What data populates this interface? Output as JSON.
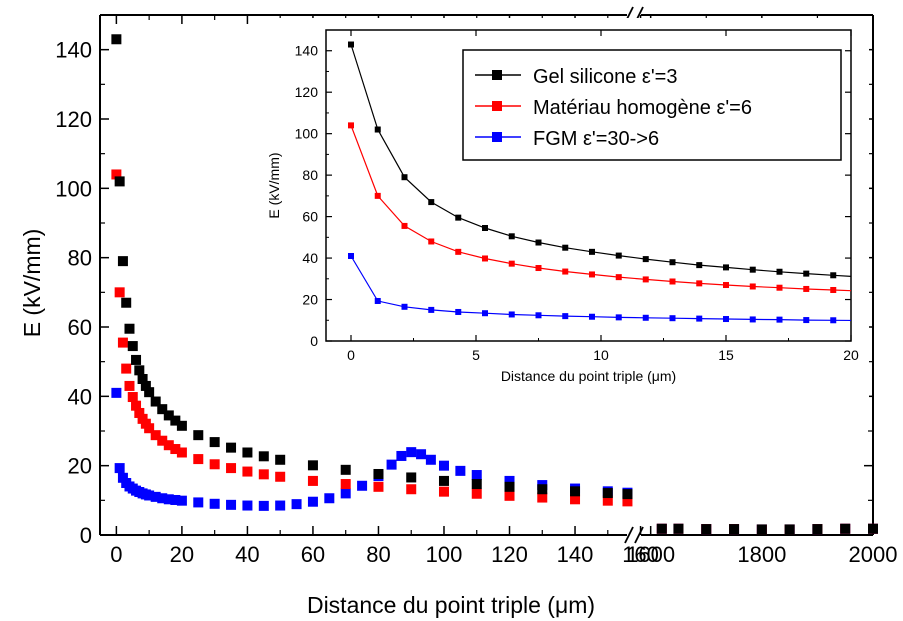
{
  "chart_data": [
    {
      "type": "scatter",
      "xlabel": "Distance du point triple (μm)",
      "ylabel": "E (kV/mm)",
      "ylim": [
        0,
        150
      ],
      "y_ticks": [
        "0",
        "20",
        "40",
        "60",
        "80",
        "100",
        "120",
        "140"
      ],
      "x_broken_axis": true,
      "x_segments": [
        {
          "range": [
            -5,
            158
          ],
          "ticks": [
            "0",
            "20",
            "40",
            "60",
            "80",
            "100",
            "120",
            "140",
            "160"
          ]
        },
        {
          "range": [
            1600,
            2000
          ],
          "ticks": [
            "1600",
            "1800",
            "2000"
          ]
        }
      ],
      "series": [
        {
          "name": "Gel silicone ε'=3",
          "color": "#000000",
          "points": [
            [
              0,
              143
            ],
            [
              1,
              102
            ],
            [
              2,
              79
            ],
            [
              3,
              67
            ],
            [
              4,
              59.5
            ],
            [
              5,
              54.5
            ],
            [
              6,
              50.5
            ],
            [
              7,
              47.5
            ],
            [
              8,
              45
            ],
            [
              9,
              43
            ],
            [
              10,
              41.2
            ],
            [
              12,
              38.5
            ],
            [
              14,
              36.3
            ],
            [
              16,
              34.5
            ],
            [
              18,
              33
            ],
            [
              20,
              31.5
            ],
            [
              25,
              28.8
            ],
            [
              30,
              26.8
            ],
            [
              35,
              25.2
            ],
            [
              40,
              23.8
            ],
            [
              45,
              22.7
            ],
            [
              50,
              21.7
            ],
            [
              60,
              20.1
            ],
            [
              70,
              18.8
            ],
            [
              80,
              17.6
            ],
            [
              90,
              16.6
            ],
            [
              100,
              15.6
            ],
            [
              110,
              14.7
            ],
            [
              120,
              13.9
            ],
            [
              130,
              13.2
            ],
            [
              140,
              12.6
            ],
            [
              150,
              12.1
            ],
            [
              156,
              11.8
            ],
            [
              1620,
              1.8
            ],
            [
              1650,
              1.8
            ],
            [
              1700,
              1.7
            ],
            [
              1750,
              1.7
            ],
            [
              1800,
              1.6
            ],
            [
              1850,
              1.6
            ],
            [
              1900,
              1.7
            ],
            [
              1950,
              1.8
            ],
            [
              2000,
              1.8
            ]
          ]
        },
        {
          "name": "Matériau homogène ε'=6",
          "color": "#ff0000",
          "points": [
            [
              0,
              104
            ],
            [
              1,
              70
            ],
            [
              2,
              55.5
            ],
            [
              3,
              48
            ],
            [
              4,
              43
            ],
            [
              5,
              39.8
            ],
            [
              6,
              37.3
            ],
            [
              7,
              35.2
            ],
            [
              8,
              33.5
            ],
            [
              9,
              32.1
            ],
            [
              10,
              30.8
            ],
            [
              12,
              28.8
            ],
            [
              14,
              27.2
            ],
            [
              16,
              25.9
            ],
            [
              18,
              24.8
            ],
            [
              20,
              23.8
            ],
            [
              25,
              21.9
            ],
            [
              30,
              20.4
            ],
            [
              35,
              19.3
            ],
            [
              40,
              18.3
            ],
            [
              45,
              17.5
            ],
            [
              50,
              16.8
            ],
            [
              60,
              15.6
            ],
            [
              70,
              14.7
            ],
            [
              80,
              13.9
            ],
            [
              90,
              13.2
            ],
            [
              100,
              12.5
            ],
            [
              110,
              11.9
            ],
            [
              120,
              11.3
            ],
            [
              130,
              10.8
            ],
            [
              140,
              10.3
            ],
            [
              150,
              9.9
            ],
            [
              156,
              9.7
            ],
            [
              1620,
              1.8
            ],
            [
              1650,
              1.8
            ],
            [
              1700,
              1.7
            ],
            [
              1750,
              1.7
            ],
            [
              1800,
              1.6
            ],
            [
              1850,
              1.6
            ],
            [
              1900,
              1.7
            ],
            [
              1950,
              1.8
            ],
            [
              2000,
              1.8
            ]
          ]
        },
        {
          "name": "FGM ε'=30->6",
          "color": "#0000ff",
          "points": [
            [
              0,
              41
            ],
            [
              1,
              19.3
            ],
            [
              2,
              16.5
            ],
            [
              3,
              15
            ],
            [
              4,
              14
            ],
            [
              5,
              13.4
            ],
            [
              6,
              12.8
            ],
            [
              7,
              12.4
            ],
            [
              8,
              12
            ],
            [
              9,
              11.7
            ],
            [
              10,
              11.4
            ],
            [
              12,
              11
            ],
            [
              14,
              10.6
            ],
            [
              16,
              10.3
            ],
            [
              18,
              10.1
            ],
            [
              20,
              9.9
            ],
            [
              25,
              9.4
            ],
            [
              30,
              9
            ],
            [
              35,
              8.7
            ],
            [
              40,
              8.5
            ],
            [
              45,
              8.4
            ],
            [
              50,
              8.5
            ],
            [
              55,
              8.9
            ],
            [
              60,
              9.6
            ],
            [
              65,
              10.6
            ],
            [
              70,
              12
            ],
            [
              75,
              14.2
            ],
            [
              80,
              17
            ],
            [
              84,
              20.3
            ],
            [
              87,
              22.8
            ],
            [
              90,
              23.9
            ],
            [
              93,
              23.3
            ],
            [
              96,
              21.7
            ],
            [
              100,
              20
            ],
            [
              105,
              18.5
            ],
            [
              110,
              17.3
            ],
            [
              120,
              15.6
            ],
            [
              130,
              14.4
            ],
            [
              140,
              13.4
            ],
            [
              150,
              12.6
            ],
            [
              156,
              12.2
            ],
            [
              1620,
              1.8
            ],
            [
              1650,
              1.8
            ],
            [
              1700,
              1.7
            ],
            [
              1750,
              1.7
            ],
            [
              1800,
              1.6
            ],
            [
              1850,
              1.6
            ],
            [
              1900,
              1.7
            ],
            [
              1950,
              1.8
            ],
            [
              2000,
              1.8
            ]
          ]
        }
      ]
    },
    {
      "type": "line",
      "inset": true,
      "xlabel": "Distance du point triple (μm)",
      "ylabel": "E (kV/mm)",
      "xlim": [
        -1,
        20
      ],
      "ylim": [
        0,
        150
      ],
      "x_ticks": [
        "0",
        "5",
        "10",
        "15",
        "20"
      ],
      "y_ticks": [
        "0",
        "20",
        "40",
        "60",
        "80",
        "100",
        "120",
        "140"
      ],
      "legend_position": "top-right",
      "series": [
        {
          "name": "Gel silicone ε'=3",
          "color": "#000000",
          "points": [
            [
              0,
              143
            ],
            [
              1.07,
              102
            ],
            [
              2.14,
              79
            ],
            [
              3.21,
              67
            ],
            [
              4.29,
              59.5
            ],
            [
              5.36,
              54.5
            ],
            [
              6.43,
              50.5
            ],
            [
              7.5,
              47.5
            ],
            [
              8.57,
              45
            ],
            [
              9.64,
              43
            ],
            [
              10.71,
              41.2
            ],
            [
              11.79,
              39.5
            ],
            [
              12.86,
              38
            ],
            [
              13.93,
              36.6
            ],
            [
              15,
              35.5
            ],
            [
              16.07,
              34.4
            ],
            [
              17.14,
              33.4
            ],
            [
              18.21,
              32.5
            ],
            [
              19.29,
              31.7
            ],
            [
              20.36,
              30.9
            ]
          ]
        },
        {
          "name": "Matériau homogène ε'=6",
          "color": "#ff0000",
          "points": [
            [
              0,
              104
            ],
            [
              1.07,
              70
            ],
            [
              2.14,
              55.5
            ],
            [
              3.21,
              48
            ],
            [
              4.29,
              43
            ],
            [
              5.36,
              39.8
            ],
            [
              6.43,
              37.3
            ],
            [
              7.5,
              35.2
            ],
            [
              8.57,
              33.5
            ],
            [
              9.64,
              32.1
            ],
            [
              10.71,
              30.8
            ],
            [
              11.79,
              29.7
            ],
            [
              12.86,
              28.7
            ],
            [
              13.93,
              27.8
            ],
            [
              15,
              27
            ],
            [
              16.07,
              26.3
            ],
            [
              17.14,
              25.7
            ],
            [
              18.21,
              25.1
            ],
            [
              19.29,
              24.6
            ],
            [
              20.36,
              24.1
            ]
          ]
        },
        {
          "name": "FGM ε'=30->6",
          "color": "#0000ff",
          "points": [
            [
              0,
              41
            ],
            [
              1.07,
              19.3
            ],
            [
              2.14,
              16.5
            ],
            [
              3.21,
              15
            ],
            [
              4.29,
              14
            ],
            [
              5.36,
              13.4
            ],
            [
              6.43,
              12.8
            ],
            [
              7.5,
              12.4
            ],
            [
              8.57,
              12
            ],
            [
              9.64,
              11.7
            ],
            [
              10.71,
              11.4
            ],
            [
              11.79,
              11.2
            ],
            [
              12.86,
              11
            ],
            [
              13.93,
              10.8
            ],
            [
              15,
              10.6
            ],
            [
              16.07,
              10.4
            ],
            [
              17.14,
              10.3
            ],
            [
              18.21,
              10.1
            ],
            [
              19.29,
              10
            ],
            [
              20.36,
              9.9
            ]
          ]
        }
      ]
    }
  ]
}
